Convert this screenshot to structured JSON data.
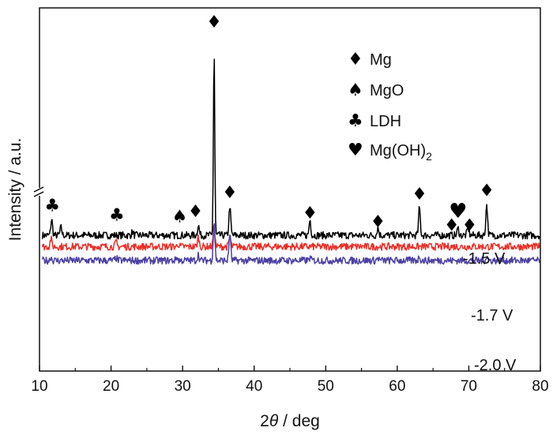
{
  "chart_data": {
    "type": "line",
    "title": "",
    "xlabel_prefix": "2",
    "xlabel_symbol": "θ",
    "xlabel_suffix": " / deg",
    "ylabel": "Intensity / a.u.",
    "xlim": [
      10,
      80
    ],
    "x_ticks": [
      "10",
      "20",
      "30",
      "40",
      "50",
      "60",
      "70",
      "80"
    ],
    "y_ticks": [],
    "grid": false,
    "legend": {
      "placement": "top-right",
      "items": [
        {
          "name": "Mg",
          "symbol": "♦"
        },
        {
          "name": "MgO",
          "symbol": "♠"
        },
        {
          "name": "LDH",
          "symbol": "♣"
        },
        {
          "name": "Mg(OH)",
          "sub": "2",
          "symbol": "♥"
        }
      ]
    },
    "series": [
      {
        "name": "-1.5 V",
        "color": "#000000",
        "baseline": 0.95,
        "peaks": [
          {
            "x": 11.7,
            "h": 0.9
          },
          {
            "x": 13.0,
            "h": 0.45
          },
          {
            "x": 23.0,
            "h": 0.2
          },
          {
            "x": 32.2,
            "h": 0.6
          },
          {
            "x": 34.4,
            "h": 10.7
          },
          {
            "x": 36.6,
            "h": 1.7
          },
          {
            "x": 47.8,
            "h": 0.9
          },
          {
            "x": 57.3,
            "h": 0.45
          },
          {
            "x": 63.1,
            "h": 1.6
          },
          {
            "x": 68.5,
            "h": 0.4
          },
          {
            "x": 69.9,
            "h": 0.45
          },
          {
            "x": 72.5,
            "h": 1.8
          }
        ]
      },
      {
        "name": "-1.7 V",
        "color": "#e8302a",
        "baseline": 0.3,
        "peaks": [
          {
            "x": 11.6,
            "h": 0.45
          },
          {
            "x": 20.7,
            "h": 0.25
          },
          {
            "x": 29.4,
            "h": 0.15
          },
          {
            "x": 32.2,
            "h": 0.55
          },
          {
            "x": 34.4,
            "h": 1.15
          },
          {
            "x": 36.6,
            "h": 0.55
          }
        ]
      },
      {
        "name": "-2.0 V",
        "color": "#4b3fa3",
        "baseline": -0.5,
        "peaks": [
          {
            "x": 11.6,
            "h": 0.2
          },
          {
            "x": 20.7,
            "h": 0.15
          },
          {
            "x": 29.2,
            "h": 0.2
          },
          {
            "x": 32.2,
            "h": 0.35
          },
          {
            "x": 34.4,
            "h": 2.2
          },
          {
            "x": 36.6,
            "h": 1.6
          },
          {
            "x": 47.8,
            "h": 0.15
          },
          {
            "x": 57.3,
            "h": 0.15
          },
          {
            "x": 63.1,
            "h": 0.25
          },
          {
            "x": 72.5,
            "h": 0.25
          }
        ]
      }
    ],
    "phase_markers": [
      {
        "phase": "LDH",
        "symbol": "♣",
        "x": 11.8,
        "level": 2.35
      },
      {
        "phase": "LDH",
        "symbol": "♣",
        "x": 20.8,
        "level": 1.8
      },
      {
        "phase": "MgO",
        "symbol": "♠",
        "x": 29.6,
        "level": 1.7
      },
      {
        "phase": "Mg",
        "symbol": "♦",
        "x": 31.8,
        "level": 2.0
      },
      {
        "phase": "Mg",
        "symbol": "♦",
        "x": 34.4,
        "level": 12.9
      },
      {
        "phase": "Mg",
        "symbol": "♦",
        "x": 36.6,
        "level": 3.1
      },
      {
        "phase": "Mg",
        "symbol": "♦",
        "x": 47.8,
        "level": 1.9
      },
      {
        "phase": "Mg",
        "symbol": "♦",
        "x": 57.3,
        "level": 1.4
      },
      {
        "phase": "Mg",
        "symbol": "♦",
        "x": 63.1,
        "level": 3.0
      },
      {
        "phase": "Mg(OH)2",
        "symbol": "♥",
        "x": 68.5,
        "level": 1.95
      },
      {
        "phase": "Mg",
        "symbol": "♦",
        "x": 67.6,
        "level": 1.2
      },
      {
        "phase": "Mg",
        "symbol": "♦",
        "x": 70.1,
        "level": 1.2
      },
      {
        "phase": "Mg",
        "symbol": "♦",
        "x": 72.5,
        "level": 3.2
      }
    ]
  }
}
